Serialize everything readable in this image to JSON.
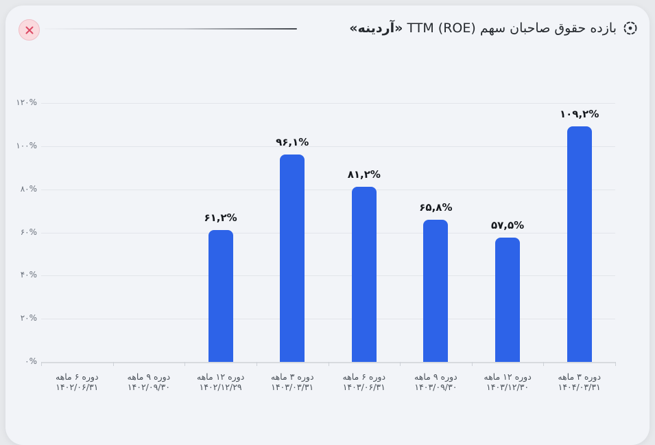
{
  "header": {
    "title_regular": "بازده حقوق صاحبان سهم TTM (ROE)",
    "title_bold": "«آردینه»"
  },
  "icons": {
    "close": "circle-x-icon",
    "title": "dashed-circle-dot-icon"
  },
  "colors": {
    "bar": "#2d63e8",
    "card_bg": "#f2f4f8",
    "page_bg": "#e7e9ec",
    "close_bg": "#fadade",
    "close_border": "#f0bdc6",
    "close_x": "#dc4a65",
    "gridline": "#e2e5ea",
    "axis": "#d7dade",
    "title_text": "#25292e",
    "y_label": "#6b727d",
    "x_label": "#4b525a",
    "value_label": "#15181d"
  },
  "chart_data": {
    "type": "bar",
    "title": "بازده حقوق صاحبان سهم TTM (ROE) «آردینه»",
    "categories": [
      {
        "period": "دوره ۶ ماهه",
        "date": "۱۴۰۲/۰۶/۳۱"
      },
      {
        "period": "دوره ۹ ماهه",
        "date": "۱۴۰۲/۰۹/۳۰"
      },
      {
        "period": "دوره ۱۲ ماهه",
        "date": "۱۴۰۲/۱۲/۲۹"
      },
      {
        "period": "دوره ۳ ماهه",
        "date": "۱۴۰۳/۰۳/۳۱"
      },
      {
        "period": "دوره ۶ ماهه",
        "date": "۱۴۰۳/۰۶/۳۱"
      },
      {
        "period": "دوره ۹ ماهه",
        "date": "۱۴۰۳/۰۹/۳۰"
      },
      {
        "period": "دوره ۱۲ ماهه",
        "date": "۱۴۰۳/۱۲/۳۰"
      },
      {
        "period": "دوره ۳ ماهه",
        "date": "۱۴۰۴/۰۳/۳۱"
      }
    ],
    "values": [
      null,
      null,
      61.2,
      96.1,
      81.2,
      65.8,
      57.5,
      109.2
    ],
    "value_labels": [
      "",
      "",
      "۶۱,۲%",
      "۹۶,۱%",
      "۸۱,۲%",
      "۶۵,۸%",
      "۵۷,۵%",
      "۱۰۹,۲%"
    ],
    "y_ticks": [
      {
        "value": 0,
        "label": "۰%"
      },
      {
        "value": 20,
        "label": "۲۰%"
      },
      {
        "value": 40,
        "label": "۴۰%"
      },
      {
        "value": 60,
        "label": "۶۰%"
      },
      {
        "value": 80,
        "label": "۸۰%"
      },
      {
        "value": 100,
        "label": "۱۰۰%"
      },
      {
        "value": 120,
        "label": "۱۲۰%"
      }
    ],
    "ylim": [
      0,
      120
    ],
    "grid": true,
    "legend": "none",
    "bar_color": "#2d63e8"
  }
}
